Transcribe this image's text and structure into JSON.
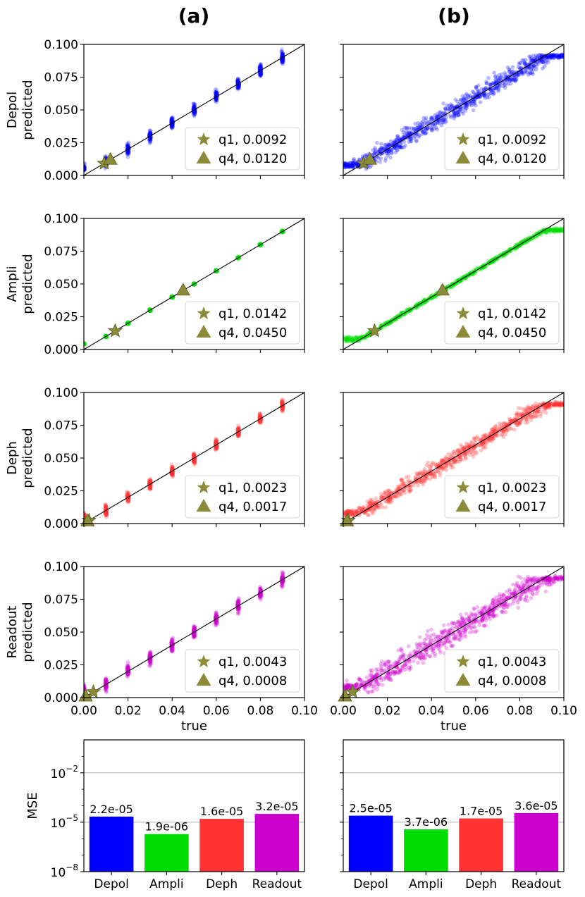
{
  "panel_labels": [
    "(a)",
    "(b)"
  ],
  "axis": {
    "xlabel": "true",
    "xticks": [
      "0.00",
      "0.02",
      "0.04",
      "0.06",
      "0.08",
      "0.10"
    ],
    "yticks": [
      "0.000",
      "0.025",
      "0.050",
      "0.075",
      "0.100"
    ]
  },
  "colors": {
    "Depol": "#0000ff",
    "Ampli": "#00dd00",
    "Deph": "#ff3333",
    "Readout": "#cc00cc",
    "marker": "#8b8b3a"
  },
  "chart_data": [
    {
      "type": "scatter",
      "panel": "a",
      "row": 0,
      "series_name": "Depol",
      "ylabel": [
        "Depol",
        "predicted"
      ],
      "xlim": [
        0,
        0.1
      ],
      "ylim": [
        0,
        0.1
      ],
      "x_true_levels": [
        0.0,
        0.01,
        0.02,
        0.03,
        0.04,
        0.05,
        0.06,
        0.07,
        0.08,
        0.09
      ],
      "spread": 0.012,
      "markers": [
        {
          "symbol": "star",
          "x": 0.0092,
          "y": 0.0092
        },
        {
          "symbol": "triangle",
          "x": 0.012,
          "y": 0.012
        }
      ],
      "legend": [
        "q1, 0.0092",
        "q4, 0.0120"
      ]
    },
    {
      "type": "scatter",
      "panel": "b",
      "row": 0,
      "series_name": "Depol",
      "ylabel": [
        "Depol",
        "predicted"
      ],
      "xlim": [
        0,
        0.1
      ],
      "ylim": [
        0,
        0.1
      ],
      "continuous": true,
      "spread": 0.007,
      "markers": [
        {
          "symbol": "star",
          "x": 0.0092,
          "y": 0.0092
        },
        {
          "symbol": "triangle",
          "x": 0.012,
          "y": 0.012
        }
      ],
      "legend": [
        "q1, 0.0092",
        "q4, 0.0120"
      ]
    },
    {
      "type": "scatter",
      "panel": "a",
      "row": 1,
      "series_name": "Ampli",
      "ylabel": [
        "Ampli",
        "predicted"
      ],
      "xlim": [
        0,
        0.1
      ],
      "ylim": [
        0,
        0.1
      ],
      "x_true_levels": [
        0.0,
        0.01,
        0.02,
        0.03,
        0.04,
        0.05,
        0.06,
        0.07,
        0.08,
        0.09
      ],
      "spread": 0.002,
      "markers": [
        {
          "symbol": "star",
          "x": 0.0142,
          "y": 0.0142
        },
        {
          "symbol": "triangle",
          "x": 0.045,
          "y": 0.045
        }
      ],
      "legend": [
        "q1, 0.0142",
        "q4, 0.0450"
      ]
    },
    {
      "type": "scatter",
      "panel": "b",
      "row": 1,
      "series_name": "Ampli",
      "ylabel": [
        "Ampli",
        "predicted"
      ],
      "xlim": [
        0,
        0.1
      ],
      "ylim": [
        0,
        0.1
      ],
      "continuous": true,
      "spread": 0.0015,
      "markers": [
        {
          "symbol": "star",
          "x": 0.0142,
          "y": 0.0142
        },
        {
          "symbol": "triangle",
          "x": 0.045,
          "y": 0.045
        }
      ],
      "legend": [
        "q1, 0.0142",
        "q4, 0.0450"
      ]
    },
    {
      "type": "scatter",
      "panel": "a",
      "row": 2,
      "series_name": "Deph",
      "ylabel": [
        "Deph",
        "predicted"
      ],
      "xlim": [
        0,
        0.1
      ],
      "ylim": [
        0,
        0.1
      ],
      "x_true_levels": [
        0.0,
        0.01,
        0.02,
        0.03,
        0.04,
        0.05,
        0.06,
        0.07,
        0.08,
        0.09
      ],
      "spread": 0.011,
      "markers": [
        {
          "symbol": "star",
          "x": 0.0023,
          "y": 0.0023
        },
        {
          "symbol": "triangle",
          "x": 0.0017,
          "y": 0.0017
        }
      ],
      "legend": [
        "q1, 0.0023",
        "q4, 0.0017"
      ]
    },
    {
      "type": "scatter",
      "panel": "b",
      "row": 2,
      "series_name": "Deph",
      "ylabel": [
        "Deph",
        "predicted"
      ],
      "xlim": [
        0,
        0.1
      ],
      "ylim": [
        0,
        0.1
      ],
      "continuous": true,
      "spread": 0.006,
      "markers": [
        {
          "symbol": "star",
          "x": 0.0023,
          "y": 0.0023
        },
        {
          "symbol": "triangle",
          "x": 0.0017,
          "y": 0.0017
        }
      ],
      "legend": [
        "q1, 0.0023",
        "q4, 0.0017"
      ]
    },
    {
      "type": "scatter",
      "panel": "a",
      "row": 3,
      "series_name": "Readout",
      "ylabel": [
        "Readout",
        "predicted"
      ],
      "xlim": [
        0,
        0.1
      ],
      "ylim": [
        0,
        0.1
      ],
      "x_true_levels": [
        0.0,
        0.01,
        0.02,
        0.03,
        0.04,
        0.05,
        0.06,
        0.07,
        0.08,
        0.09
      ],
      "spread": 0.014,
      "markers": [
        {
          "symbol": "star",
          "x": 0.0043,
          "y": 0.0043
        },
        {
          "symbol": "triangle",
          "x": 0.0008,
          "y": 0.0008
        }
      ],
      "legend": [
        "q1, 0.0043",
        "q4, 0.0008"
      ]
    },
    {
      "type": "scatter",
      "panel": "b",
      "row": 3,
      "series_name": "Readout",
      "ylabel": [
        "Readout",
        "predicted"
      ],
      "xlim": [
        0,
        0.1
      ],
      "ylim": [
        0,
        0.1
      ],
      "continuous": true,
      "spread": 0.009,
      "markers": [
        {
          "symbol": "star",
          "x": 0.0043,
          "y": 0.0043
        },
        {
          "symbol": "triangle",
          "x": 0.0008,
          "y": 0.0008
        }
      ],
      "legend": [
        "q1, 0.0043",
        "q4, 0.0008"
      ]
    },
    {
      "type": "bar",
      "panel": "a",
      "row": 4,
      "ylabel": "MSE",
      "yscale": "log",
      "ylim": [
        1e-08,
        1
      ],
      "yticks": [
        {
          "value": 1e-08,
          "exp": "−8"
        },
        {
          "value": 1e-05,
          "exp": "−5"
        },
        {
          "value": 0.01,
          "exp": "−2"
        }
      ],
      "categories": [
        "Depol",
        "Ampli",
        "Deph",
        "Readout"
      ],
      "values": [
        2.2e-05,
        1.9e-06,
        1.6e-05,
        3.2e-05
      ],
      "value_labels": [
        "2.2e-05",
        "1.9e-06",
        "1.6e-05",
        "3.2e-05"
      ]
    },
    {
      "type": "bar",
      "panel": "b",
      "row": 4,
      "ylabel": "MSE",
      "yscale": "log",
      "ylim": [
        1e-08,
        1
      ],
      "yticks": [
        {
          "value": 1e-08,
          "exp": "−8"
        },
        {
          "value": 1e-05,
          "exp": "−5"
        },
        {
          "value": 0.01,
          "exp": "−2"
        }
      ],
      "categories": [
        "Depol",
        "Ampli",
        "Deph",
        "Readout"
      ],
      "values": [
        2.5e-05,
        3.7e-06,
        1.7e-05,
        3.6e-05
      ],
      "value_labels": [
        "2.5e-05",
        "3.7e-06",
        "1.7e-05",
        "3.6e-05"
      ]
    }
  ]
}
